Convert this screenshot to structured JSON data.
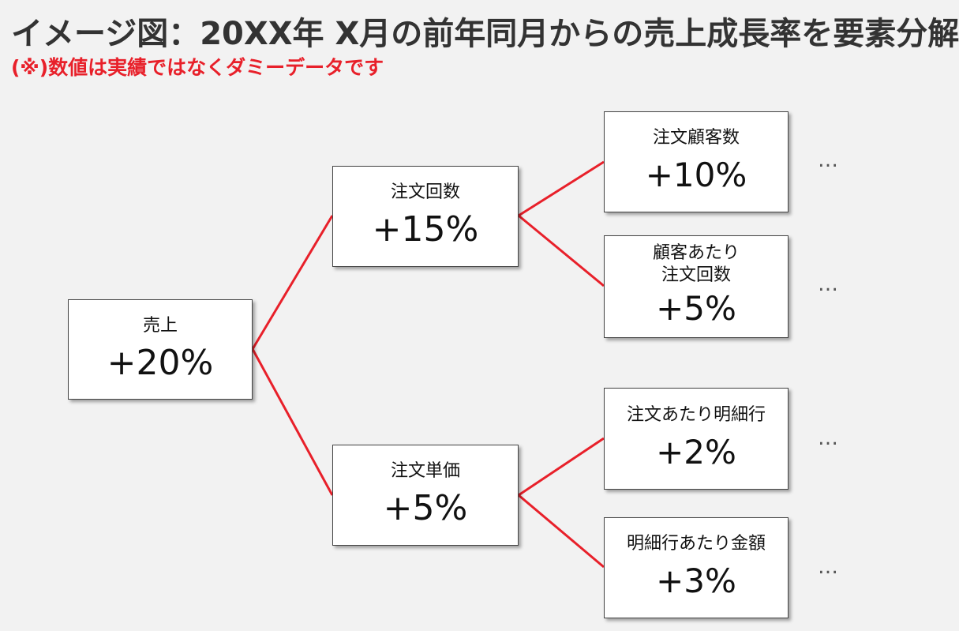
{
  "title": "イメージ図：20XX年 X月の前年同月からの売上成長率を要素分解",
  "note": "(※)数値は実績ではなくダミーデータです",
  "colors": {
    "link": "#e8202a",
    "note": "#e8202a"
  },
  "tree": {
    "root": {
      "label": "売上",
      "value": "+20%"
    },
    "order_count": {
      "label": "注文回数",
      "value": "+15%"
    },
    "order_price": {
      "label": "注文単価",
      "value": "+5%"
    },
    "customers": {
      "label": "注文顧客数",
      "value": "+10%"
    },
    "orders_per_customer": {
      "label": "顧客あたり\n注文回数",
      "value": "+5%"
    },
    "lines_per_order": {
      "label": "注文あたり明細行",
      "value": "+2%"
    },
    "amount_per_line": {
      "label": "明細行あたり金額",
      "value": "+3%"
    }
  },
  "ellipsis": "…"
}
